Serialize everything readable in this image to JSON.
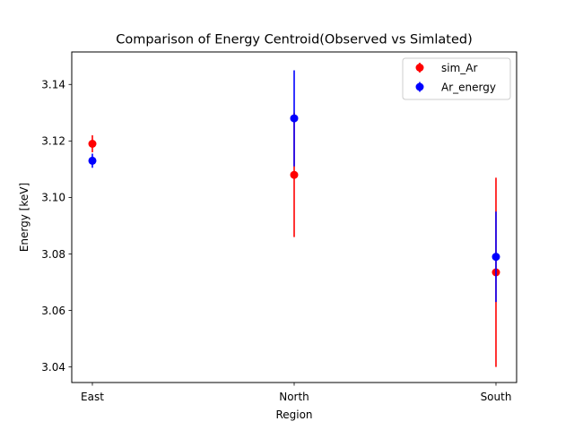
{
  "chart_data": {
    "type": "scatter",
    "title": "Comparison of Energy Centroid(Observed vs Simlated)",
    "xlabel": "Region",
    "ylabel": "Energy [keV]",
    "categories": [
      "East",
      "North",
      "South"
    ],
    "ylim": [
      3.0345,
      3.1515
    ],
    "yticks": [
      "3.04",
      "3.06",
      "3.08",
      "3.10",
      "3.12",
      "3.14"
    ],
    "grid": false,
    "legend_position": "top-right",
    "series": [
      {
        "name": "sim_Ar",
        "color": "#ff0000",
        "values": [
          3.119,
          3.108,
          3.0735
        ],
        "errors": [
          0.003,
          0.022,
          0.0335
        ]
      },
      {
        "name": "Ar_energy",
        "color": "#0000ff",
        "values": [
          3.113,
          3.128,
          3.079
        ],
        "errors": [
          0.0025,
          0.017,
          0.016
        ]
      }
    ]
  }
}
